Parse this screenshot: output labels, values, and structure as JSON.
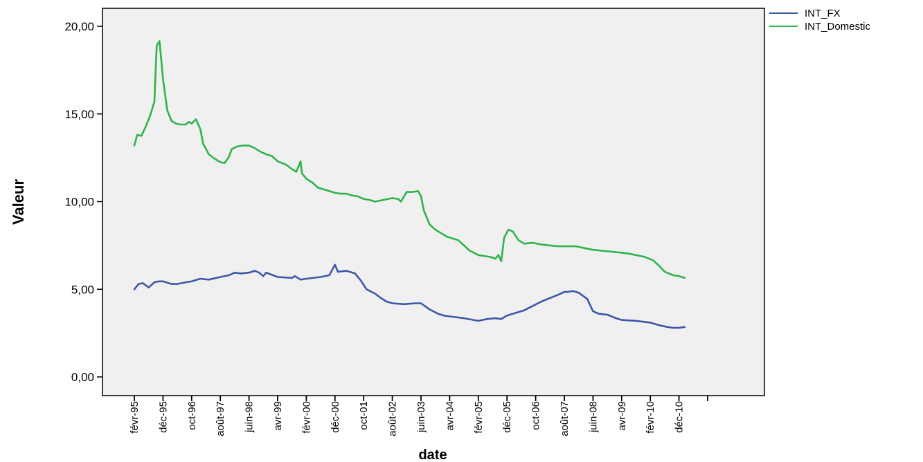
{
  "chart_data": {
    "type": "line",
    "xlabel": "date",
    "ylabel": "Valeur",
    "ylim": [
      0,
      21.3
    ],
    "yticks": [
      {
        "value": 0,
        "label": "0,00"
      },
      {
        "value": 5,
        "label": "5,00"
      },
      {
        "value": 10,
        "label": "10,00"
      },
      {
        "value": 15,
        "label": "15,00"
      },
      {
        "value": 20,
        "label": "20,00"
      }
    ],
    "xticks": [
      "févr-95",
      "déc-95",
      "oct-96",
      "août-97",
      "juin-98",
      "avr-99",
      "févr-00",
      "déc-00",
      "oct-01",
      "août-02",
      "juin-03",
      "avr-04",
      "févr-05",
      "déc-05",
      "oct-06",
      "août-07",
      "juin-08",
      "avr-09",
      "févr-10",
      "déc-10"
    ],
    "legend_position": "top-right",
    "series": [
      {
        "name": "INT_FX",
        "color": "#3c57a6",
        "points": [
          [
            0,
            5.0
          ],
          [
            0.15,
            5.3
          ],
          [
            0.3,
            5.35
          ],
          [
            0.5,
            5.1
          ],
          [
            0.7,
            5.4
          ],
          [
            0.85,
            5.45
          ],
          [
            1.0,
            5.45
          ],
          [
            1.3,
            5.3
          ],
          [
            1.5,
            5.3
          ],
          [
            1.8,
            5.4
          ],
          [
            2.0,
            5.45
          ],
          [
            2.3,
            5.6
          ],
          [
            2.6,
            5.55
          ],
          [
            3.0,
            5.7
          ],
          [
            3.3,
            5.8
          ],
          [
            3.5,
            5.95
          ],
          [
            3.7,
            5.9
          ],
          [
            4.0,
            5.95
          ],
          [
            4.2,
            6.05
          ],
          [
            4.35,
            5.95
          ],
          [
            4.5,
            5.75
          ],
          [
            4.6,
            5.95
          ],
          [
            5.0,
            5.7
          ],
          [
            5.5,
            5.65
          ],
          [
            5.6,
            5.75
          ],
          [
            5.8,
            5.55
          ],
          [
            6.0,
            5.6
          ],
          [
            6.5,
            5.7
          ],
          [
            6.8,
            5.8
          ],
          [
            7.0,
            6.4
          ],
          [
            7.1,
            6.0
          ],
          [
            7.4,
            6.05
          ],
          [
            7.7,
            5.9
          ],
          [
            7.9,
            5.5
          ],
          [
            8.1,
            5.0
          ],
          [
            8.4,
            4.75
          ],
          [
            8.6,
            4.5
          ],
          [
            8.8,
            4.3
          ],
          [
            9.0,
            4.2
          ],
          [
            9.4,
            4.15
          ],
          [
            9.8,
            4.2
          ],
          [
            10.0,
            4.2
          ],
          [
            10.3,
            3.85
          ],
          [
            10.6,
            3.6
          ],
          [
            10.8,
            3.5
          ],
          [
            11.0,
            3.45
          ],
          [
            11.5,
            3.35
          ],
          [
            12.0,
            3.2
          ],
          [
            12.3,
            3.3
          ],
          [
            12.6,
            3.35
          ],
          [
            12.8,
            3.3
          ],
          [
            13.0,
            3.5
          ],
          [
            13.3,
            3.65
          ],
          [
            13.6,
            3.8
          ],
          [
            13.9,
            4.05
          ],
          [
            14.2,
            4.3
          ],
          [
            14.5,
            4.5
          ],
          [
            14.8,
            4.7
          ],
          [
            15.0,
            4.85
          ],
          [
            15.1,
            4.85
          ],
          [
            15.3,
            4.9
          ],
          [
            15.5,
            4.8
          ],
          [
            15.8,
            4.45
          ],
          [
            16.0,
            3.75
          ],
          [
            16.2,
            3.6
          ],
          [
            16.5,
            3.55
          ],
          [
            16.8,
            3.35
          ],
          [
            17.0,
            3.25
          ],
          [
            17.5,
            3.2
          ],
          [
            18.0,
            3.1
          ],
          [
            18.3,
            2.95
          ],
          [
            18.6,
            2.85
          ],
          [
            18.8,
            2.8
          ],
          [
            19.0,
            2.8
          ],
          [
            19.2,
            2.85
          ]
        ]
      },
      {
        "name": "INT_Domestic",
        "color": "#2fb34a",
        "points": [
          [
            0,
            13.2
          ],
          [
            0.1,
            13.8
          ],
          [
            0.25,
            13.75
          ],
          [
            0.4,
            14.3
          ],
          [
            0.55,
            14.9
          ],
          [
            0.7,
            15.7
          ],
          [
            0.78,
            18.9
          ],
          [
            0.88,
            19.15
          ],
          [
            1.0,
            17.0
          ],
          [
            1.15,
            15.2
          ],
          [
            1.3,
            14.6
          ],
          [
            1.45,
            14.45
          ],
          [
            1.6,
            14.4
          ],
          [
            1.8,
            14.4
          ],
          [
            1.9,
            14.55
          ],
          [
            2.0,
            14.45
          ],
          [
            2.15,
            14.7
          ],
          [
            2.3,
            14.15
          ],
          [
            2.4,
            13.3
          ],
          [
            2.6,
            12.7
          ],
          [
            2.8,
            12.45
          ],
          [
            3.0,
            12.25
          ],
          [
            3.15,
            12.2
          ],
          [
            3.3,
            12.55
          ],
          [
            3.4,
            13.0
          ],
          [
            3.6,
            13.15
          ],
          [
            3.8,
            13.2
          ],
          [
            4.0,
            13.2
          ],
          [
            4.2,
            13.05
          ],
          [
            4.4,
            12.85
          ],
          [
            4.6,
            12.7
          ],
          [
            4.8,
            12.6
          ],
          [
            5.0,
            12.3
          ],
          [
            5.3,
            12.1
          ],
          [
            5.5,
            11.85
          ],
          [
            5.65,
            11.7
          ],
          [
            5.8,
            12.3
          ],
          [
            5.85,
            11.6
          ],
          [
            6.0,
            11.3
          ],
          [
            6.2,
            11.1
          ],
          [
            6.4,
            10.8
          ],
          [
            6.6,
            10.7
          ],
          [
            6.8,
            10.6
          ],
          [
            7.0,
            10.5
          ],
          [
            7.2,
            10.45
          ],
          [
            7.4,
            10.45
          ],
          [
            7.6,
            10.35
          ],
          [
            7.8,
            10.3
          ],
          [
            8.0,
            10.15
          ],
          [
            8.2,
            10.1
          ],
          [
            8.4,
            10.0
          ],
          [
            8.7,
            10.1
          ],
          [
            9.0,
            10.2
          ],
          [
            9.2,
            10.15
          ],
          [
            9.3,
            10.0
          ],
          [
            9.5,
            10.55
          ],
          [
            9.7,
            10.55
          ],
          [
            9.9,
            10.6
          ],
          [
            10.0,
            10.3
          ],
          [
            10.1,
            9.5
          ],
          [
            10.3,
            8.7
          ],
          [
            10.5,
            8.4
          ],
          [
            10.7,
            8.2
          ],
          [
            10.9,
            8.0
          ],
          [
            11.1,
            7.9
          ],
          [
            11.3,
            7.8
          ],
          [
            11.5,
            7.5
          ],
          [
            11.7,
            7.2
          ],
          [
            12.0,
            6.95
          ],
          [
            12.2,
            6.9
          ],
          [
            12.4,
            6.85
          ],
          [
            12.6,
            6.75
          ],
          [
            12.7,
            6.95
          ],
          [
            12.8,
            6.6
          ],
          [
            12.9,
            7.95
          ],
          [
            13.05,
            8.4
          ],
          [
            13.2,
            8.3
          ],
          [
            13.4,
            7.8
          ],
          [
            13.6,
            7.6
          ],
          [
            13.9,
            7.65
          ],
          [
            14.2,
            7.55
          ],
          [
            14.5,
            7.5
          ],
          [
            14.8,
            7.45
          ],
          [
            15.1,
            7.45
          ],
          [
            15.4,
            7.45
          ],
          [
            15.7,
            7.35
          ],
          [
            16.0,
            7.25
          ],
          [
            16.3,
            7.2
          ],
          [
            16.6,
            7.15
          ],
          [
            16.9,
            7.1
          ],
          [
            17.2,
            7.05
          ],
          [
            17.5,
            6.95
          ],
          [
            17.8,
            6.85
          ],
          [
            18.1,
            6.65
          ],
          [
            18.3,
            6.35
          ],
          [
            18.5,
            6.0
          ],
          [
            18.8,
            5.8
          ],
          [
            19.0,
            5.75
          ],
          [
            19.2,
            5.65
          ]
        ]
      }
    ]
  }
}
